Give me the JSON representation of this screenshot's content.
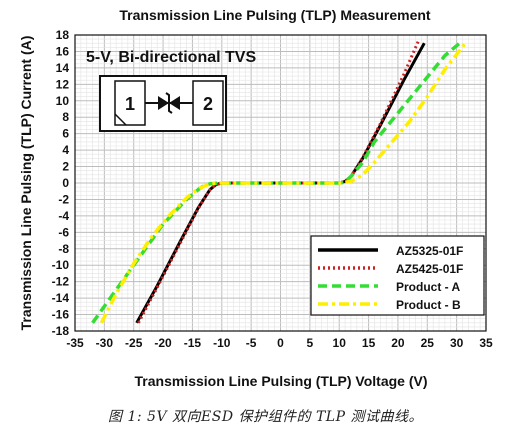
{
  "chart_data": {
    "type": "line",
    "title": "Transmission Line Pulsing (TLP) Measurement",
    "subtitle": "5-V, Bi-directional TVS",
    "xlabel": "Transmission Line Pulsing (TLP) Voltage (V)",
    "ylabel": "Transmission Line Pulsing (TLP) Current (A)",
    "xlim": [
      -35,
      35
    ],
    "ylim": [
      -18,
      18
    ],
    "xticks": [
      -35,
      -30,
      -25,
      -20,
      -15,
      -10,
      -5,
      0,
      5,
      10,
      15,
      20,
      25,
      30,
      35
    ],
    "yticks": [
      -18,
      -16,
      -14,
      -12,
      -10,
      -8,
      -6,
      -4,
      -2,
      0,
      2,
      4,
      6,
      8,
      10,
      12,
      14,
      16,
      18
    ],
    "grid": true,
    "legend_position": "bottom-right",
    "inset": {
      "pin1": "1",
      "pin2": "2"
    },
    "series": [
      {
        "name": "AZ5325-01F",
        "color": "#000000",
        "style": "solid",
        "x": [
          -24.5,
          -21,
          -17,
          -14,
          -12,
          -11,
          -10,
          0,
          10,
          11,
          12,
          14,
          17,
          21,
          24.5
        ],
        "y": [
          -17,
          -12.5,
          -7,
          -3,
          -0.8,
          -0.2,
          0,
          0,
          0,
          0.2,
          0.8,
          3,
          7,
          12.5,
          17
        ]
      },
      {
        "name": "AZ5425-01F",
        "color": "#cc2222",
        "style": "dotted",
        "x": [
          -24.2,
          -21,
          -17,
          -14,
          -12,
          -11,
          -10,
          0,
          10,
          11,
          12,
          14,
          17,
          21,
          23.5
        ],
        "y": [
          -17,
          -12.7,
          -7.2,
          -3.1,
          -0.8,
          -0.2,
          0,
          0,
          0,
          0.2,
          0.8,
          3.1,
          7.2,
          13.2,
          17.3
        ]
      },
      {
        "name": "Product - A",
        "color": "#33dd33",
        "style": "dashed",
        "x": [
          -32,
          -28,
          -24,
          -20,
          -16,
          -14,
          -13,
          -12,
          -10,
          0,
          10,
          11,
          12,
          14,
          16,
          20,
          24,
          28,
          30.5
        ],
        "y": [
          -17,
          -13,
          -9,
          -5,
          -2,
          -0.8,
          -0.3,
          -0.1,
          0,
          0,
          0,
          0.1,
          0.8,
          2.5,
          5,
          8.5,
          12,
          15.5,
          17
        ]
      },
      {
        "name": "Product - B",
        "color": "#ffee00",
        "style": "dashdot",
        "x": [
          -30.5,
          -28,
          -25,
          -22,
          -19,
          -16,
          -14,
          -12,
          -10,
          0,
          10,
          12,
          14,
          16,
          19,
          22,
          25,
          28,
          31.5
        ],
        "y": [
          -17,
          -13.5,
          -9.8,
          -6.6,
          -4,
          -1.8,
          -0.7,
          -0.1,
          0,
          0,
          0,
          0.2,
          1,
          2.5,
          5,
          7.5,
          10.5,
          13.8,
          17
        ]
      }
    ]
  },
  "caption": "图 1: 5V 双向ESD 保护组件的 TLP 测试曲线。"
}
